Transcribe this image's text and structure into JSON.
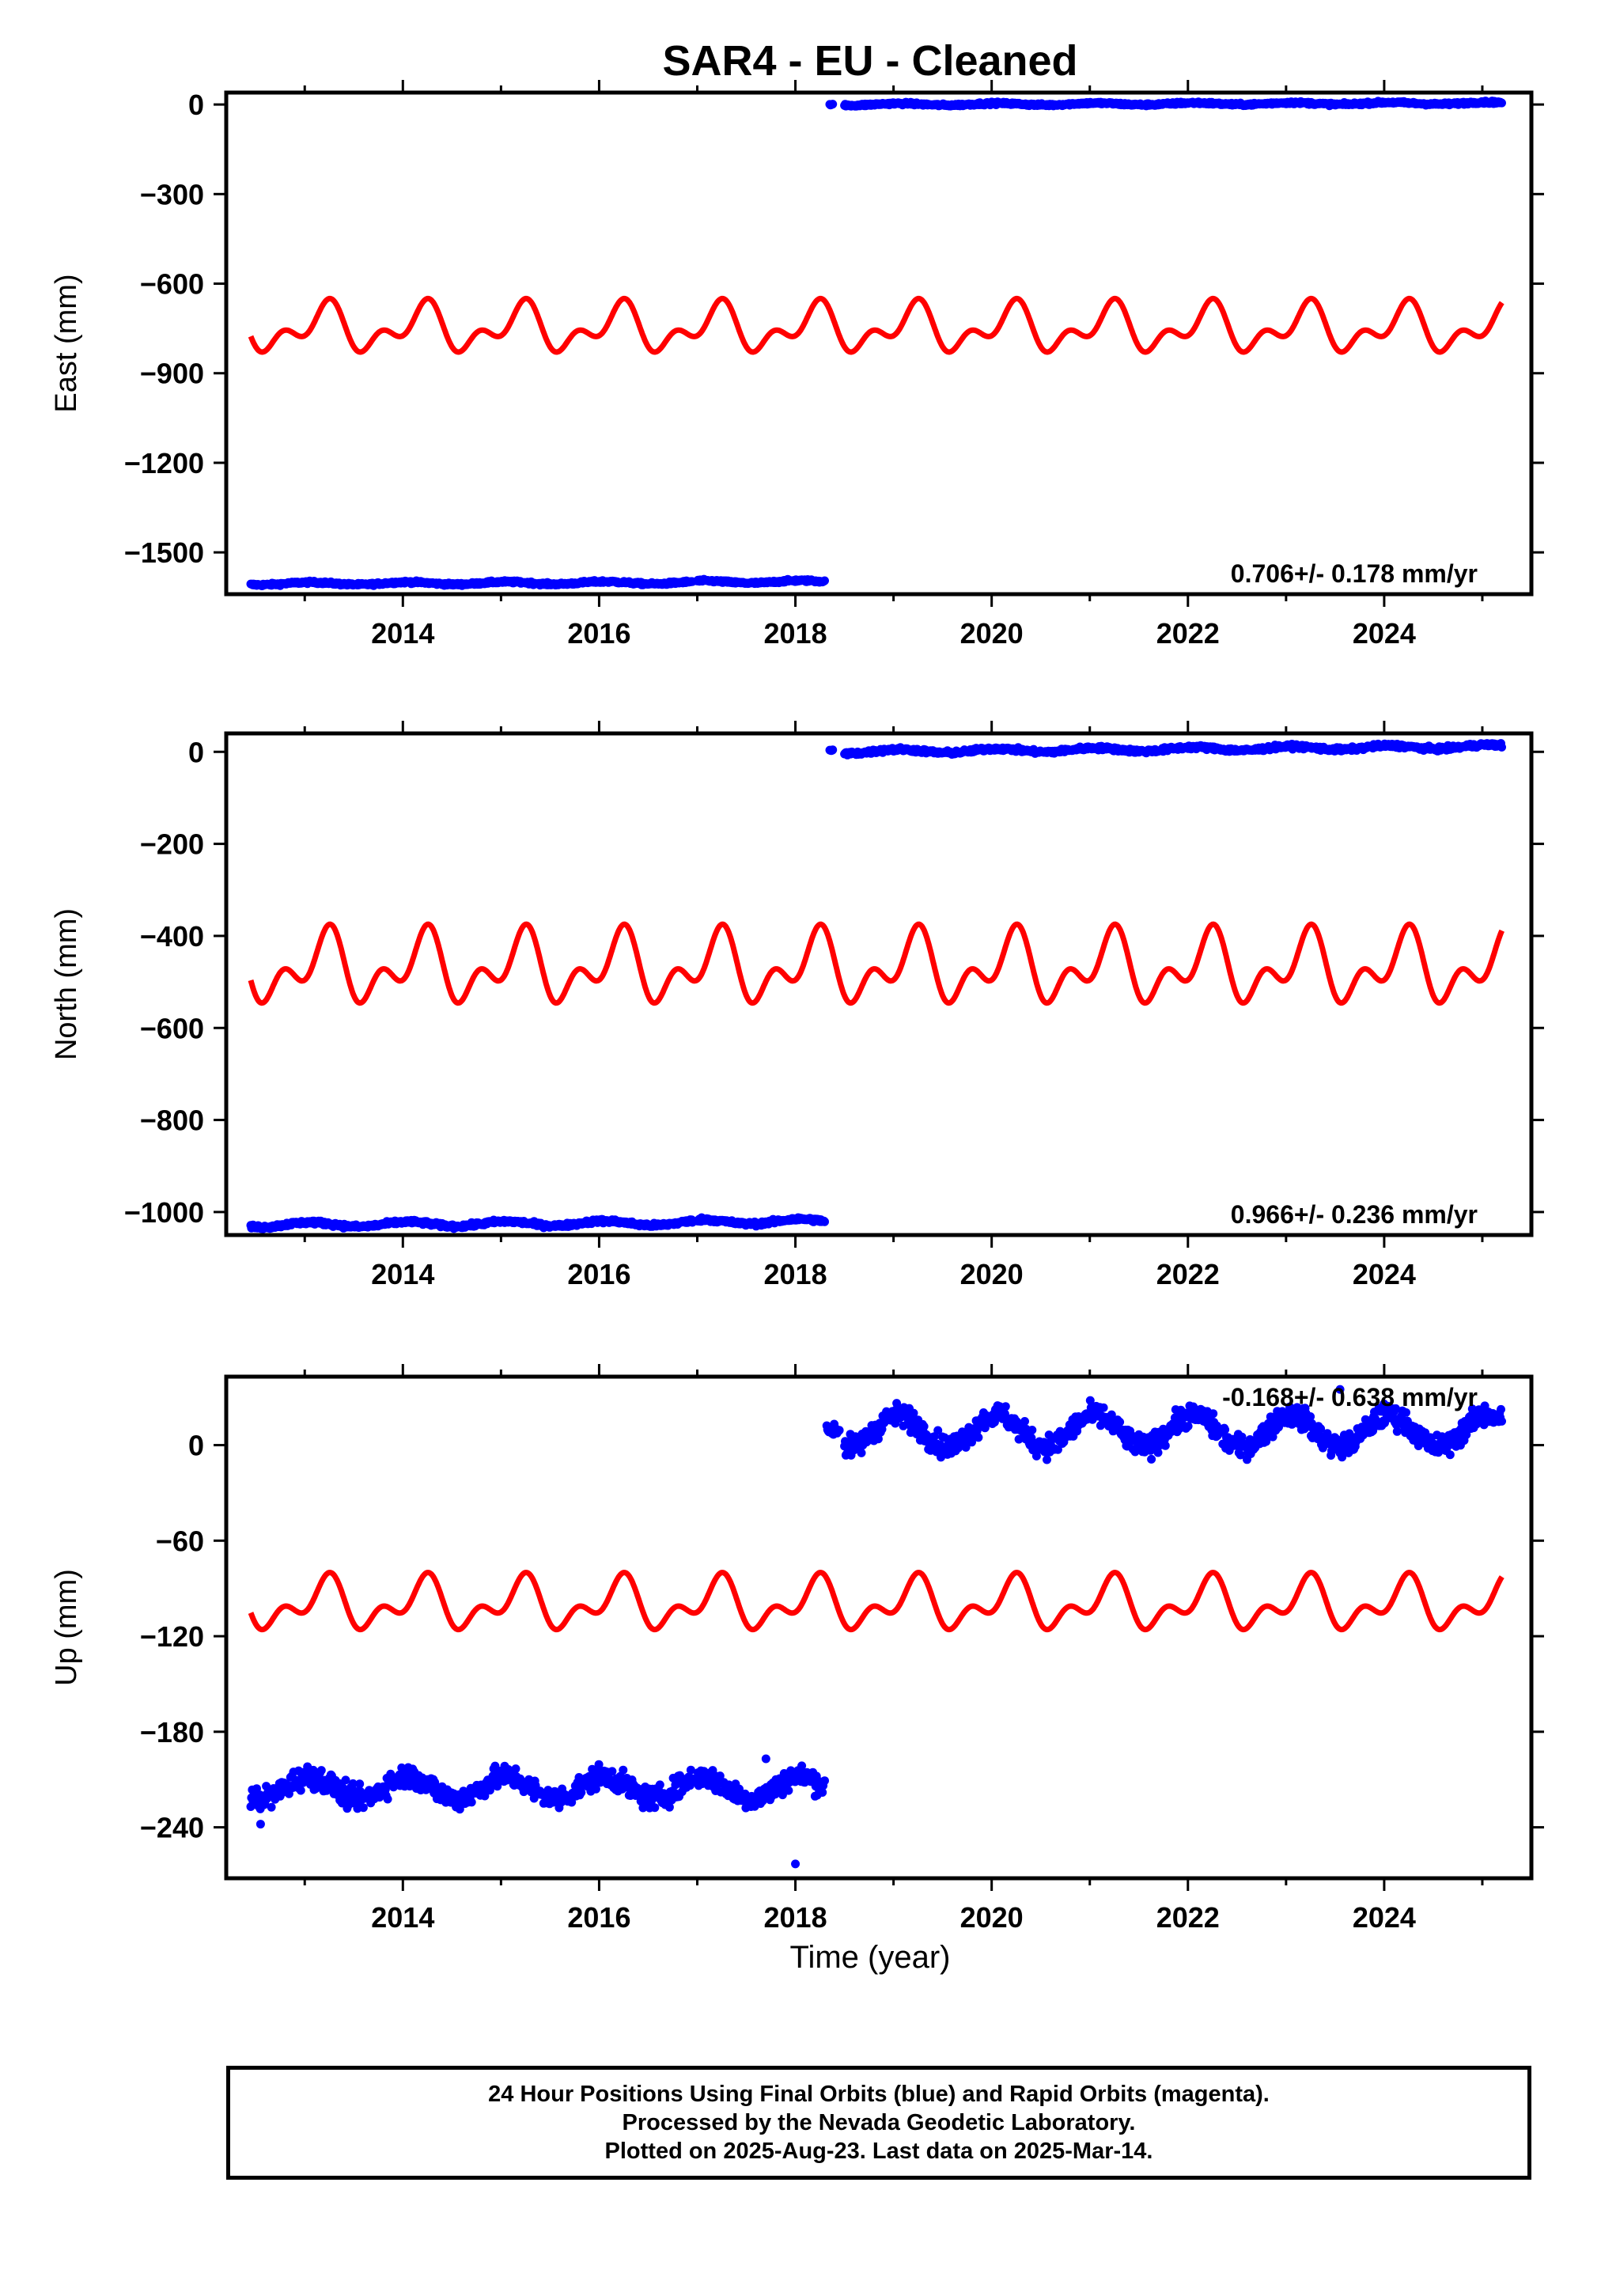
{
  "chart_title": "SAR4  - EU - Cleaned",
  "x_axis_label": "Time (year)",
  "footer": {
    "line1": "24 Hour Positions Using Final Orbits (blue) and Rapid Orbits (magenta).",
    "line2": "Processed by the Nevada Geodetic Laboratory.",
    "line3": "Plotted on 2025-Aug-23. Last data on 2025-Mar-14."
  },
  "colors": {
    "data": "#0000ff",
    "model": "#ff0000",
    "frame": "#000000"
  },
  "chart_data": [
    {
      "type": "scatter",
      "name": "East",
      "ylabel": "East (mm)",
      "xlabel": "",
      "xlim": [
        2012.2,
        2025.5
      ],
      "ylim": [
        -1640,
        40
      ],
      "xticks": [
        2014,
        2016,
        2018,
        2020,
        2022,
        2024
      ],
      "yticks": [
        0,
        -300,
        -600,
        -900,
        -1200,
        -1500
      ],
      "rate_label": "0.706+/- 0.178 mm/yr",
      "data_segments": [
        {
          "x_start": 2012.45,
          "x_end": 2016.95,
          "baseline": -1600,
          "trend": 0.8,
          "noise": 3,
          "amp": 4
        },
        {
          "x_start": 2017.0,
          "x_end": 2018.3,
          "baseline": -1598,
          "trend": 0.8,
          "noise": 3,
          "amp": 4
        },
        {
          "x_start": 2018.35,
          "x_end": 2018.38,
          "baseline": 0,
          "trend": 0,
          "noise": 1,
          "amp": 0
        },
        {
          "x_start": 2018.5,
          "x_end": 2025.2,
          "baseline": 0,
          "trend": 0.7,
          "noise": 3,
          "amp": 3
        }
      ],
      "model_curve": {
        "x_start": 2012.45,
        "x_end": 2025.2,
        "mean": -750,
        "annual_amp": 60,
        "semiannual_amp": 45,
        "phase_annual": 0.05,
        "phase_semiannual": 0.35
      }
    },
    {
      "type": "scatter",
      "name": "North",
      "ylabel": "North (mm)",
      "xlabel": "",
      "xlim": [
        2012.2,
        2025.5
      ],
      "ylim": [
        -1050,
        40
      ],
      "xticks": [
        2014,
        2016,
        2018,
        2020,
        2022,
        2024
      ],
      "yticks": [
        0,
        -200,
        -400,
        -600,
        -800,
        -1000
      ],
      "rate_label": "0.966+/- 0.236 mm/yr",
      "data_segments": [
        {
          "x_start": 2012.45,
          "x_end": 2016.95,
          "baseline": -1022,
          "trend": 1.0,
          "noise": 3,
          "amp": 5
        },
        {
          "x_start": 2017.0,
          "x_end": 2018.3,
          "baseline": -1020,
          "trend": 1.0,
          "noise": 3,
          "amp": 5
        },
        {
          "x_start": 2018.35,
          "x_end": 2018.38,
          "baseline": 3,
          "trend": 0,
          "noise": 1,
          "amp": 0
        },
        {
          "x_start": 2018.5,
          "x_end": 2025.2,
          "baseline": 0,
          "trend": 1.7,
          "noise": 3,
          "amp": 4
        }
      ],
      "model_curve": {
        "x_start": 2012.45,
        "x_end": 2025.2,
        "mean": -470,
        "annual_amp": 55,
        "semiannual_amp": 45,
        "phase_annual": 0.05,
        "phase_semiannual": 0.35
      }
    },
    {
      "type": "scatter",
      "name": "Up",
      "ylabel": "Up (mm)",
      "xlabel": "Time (year)",
      "xlim": [
        2012.2,
        2025.5
      ],
      "ylim": [
        -272,
        43
      ],
      "xticks": [
        2014,
        2016,
        2018,
        2020,
        2022,
        2024
      ],
      "yticks": [
        0,
        -60,
        -120,
        -180,
        -240
      ],
      "rate_label": "-0.168+/- 0.638 mm/yr",
      "data_segments": [
        {
          "x_start": 2012.45,
          "x_end": 2016.95,
          "baseline": -215,
          "trend": 0,
          "noise": 5,
          "amp": 7
        },
        {
          "x_start": 2017.0,
          "x_end": 2018.3,
          "baseline": -215,
          "trend": 0,
          "noise": 5,
          "amp": 7
        },
        {
          "x_start": 2018.32,
          "x_end": 2018.45,
          "baseline": 10,
          "trend": 0,
          "noise": 3,
          "amp": 0
        },
        {
          "x_start": 2018.5,
          "x_end": 2025.2,
          "baseline": 9,
          "trend": 0,
          "noise": 5,
          "amp": 10
        }
      ],
      "outliers": [
        [
          2012.55,
          -238
        ],
        [
          2018.0,
          -263
        ],
        [
          2017.7,
          -197
        ],
        [
          2023.55,
          35
        ]
      ],
      "model_curve": {
        "x_start": 2012.45,
        "x_end": 2025.2,
        "mean": -100,
        "annual_amp": 12,
        "semiannual_amp": 9,
        "phase_annual": 0.05,
        "phase_semiannual": 0.35
      }
    }
  ]
}
